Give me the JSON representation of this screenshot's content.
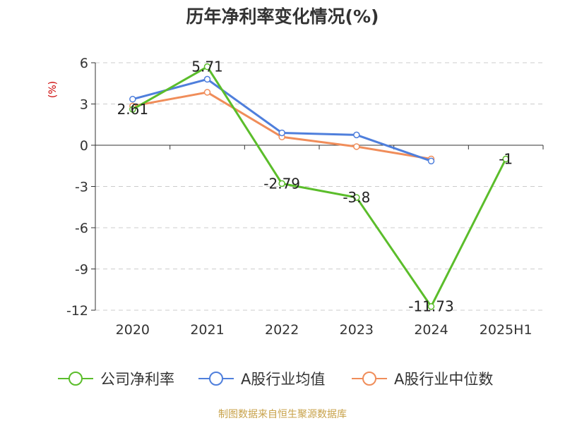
{
  "chart_data": {
    "type": "line",
    "title": "历年净利率变化情况(%)",
    "ylabel": "(%)",
    "categories": [
      "2020",
      "2021",
      "2022",
      "2023",
      "2024",
      "2025H1"
    ],
    "ylim": [
      -12,
      6
    ],
    "yticks": [
      6,
      3,
      0,
      -3,
      -6,
      -9,
      -12
    ],
    "grid": true,
    "legend_position": "bottom",
    "series": [
      {
        "name": "公司净利率",
        "color": "#5bbd2b",
        "values": [
          2.61,
          5.71,
          -2.79,
          -3.8,
          -11.73,
          -1
        ],
        "labels": [
          "2.61",
          "5.71",
          "-2.79",
          "-3.8",
          "-11.73",
          "-1"
        ]
      },
      {
        "name": "A股行业均值",
        "color": "#4f7fdc",
        "values": [
          3.35,
          4.8,
          0.9,
          0.75,
          -1.15,
          null
        ]
      },
      {
        "name": "A股行业中位数",
        "color": "#f08d5a",
        "values": [
          2.85,
          3.85,
          0.6,
          -0.1,
          -1.0,
          null
        ]
      }
    ]
  },
  "footer": {
    "source": "制图数据来自恒生聚源数据库"
  }
}
